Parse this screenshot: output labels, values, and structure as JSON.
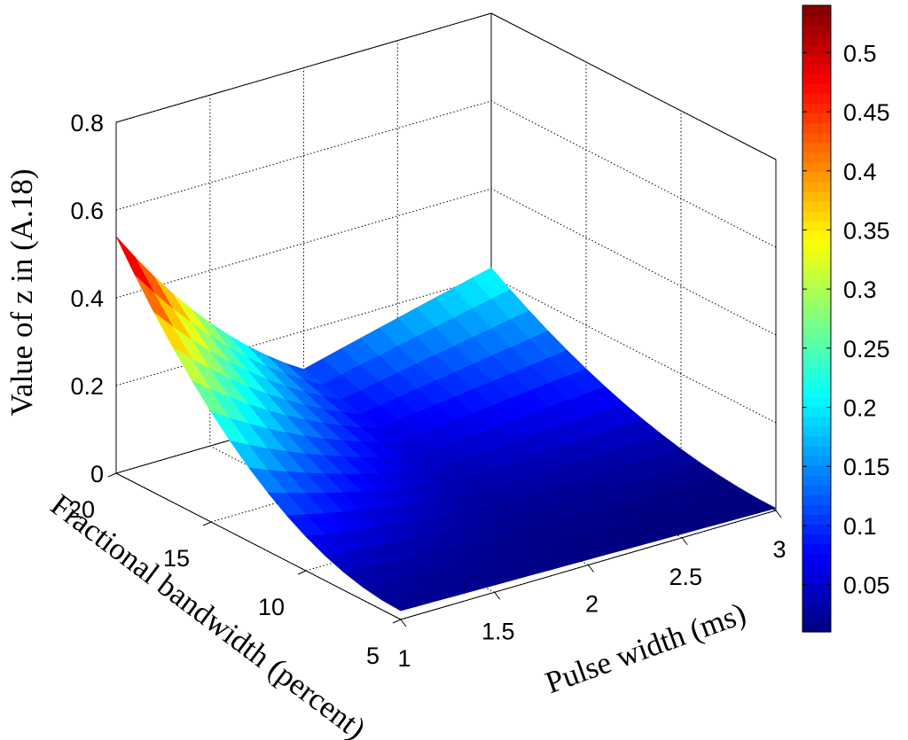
{
  "chart_data": {
    "type": "surface3d",
    "zlabel": "Value of z in (A.18)",
    "xlabel": "Pulse width (ms)",
    "ylabel": "Fractional bandwidth (percent)",
    "x": {
      "min": 1,
      "max": 3,
      "ticks": [
        1,
        1.5,
        2,
        2.5,
        3
      ],
      "tick_labels": [
        "1",
        "1.5",
        "2",
        "2.5",
        "3"
      ]
    },
    "y": {
      "min": 5,
      "max": 20,
      "ticks": [
        5,
        10,
        15,
        20
      ],
      "tick_labels": [
        "5",
        "10",
        "15",
        "20"
      ]
    },
    "z": {
      "min": 0,
      "max": 0.8,
      "ticks": [
        0,
        0.2,
        0.4,
        0.6,
        0.8
      ],
      "tick_labels": [
        "0",
        "0.2",
        "0.4",
        "0.6",
        "0.8"
      ]
    },
    "corner_values": {
      "x1_y20": 0.54,
      "x3_y20": 0.22,
      "x1_y5": 0.02,
      "x3_y5": 0.005
    },
    "colorbar": {
      "min": 0.01,
      "max": 0.54,
      "colormap": "jet",
      "ticks": [
        0.05,
        0.1,
        0.15,
        0.2,
        0.25,
        0.3,
        0.35,
        0.4,
        0.45,
        0.5
      ],
      "tick_labels": [
        "0.05",
        "0.1",
        "0.15",
        "0.2",
        "0.25",
        "0.3",
        "0.35",
        "0.4",
        "0.45",
        "0.5"
      ]
    },
    "grid": true
  }
}
